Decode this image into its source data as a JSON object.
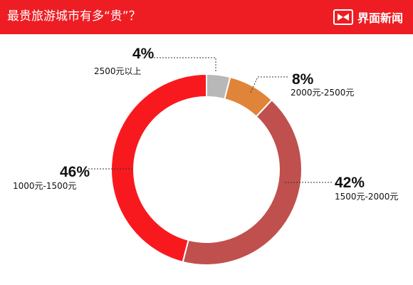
{
  "header": {
    "title": "最贵旅游城市有多“贵”？",
    "logo_text": "界面新闻",
    "logo_icon": "bowtie-logo-icon",
    "background_color": "#ee1d24"
  },
  "chart_data": {
    "type": "pie",
    "style": "donut",
    "title": "",
    "slices": [
      {
        "label": "2500元以上",
        "value": 4,
        "value_label": "4%",
        "color": "#b8b8b8"
      },
      {
        "label": "2000元-2500元",
        "value": 8,
        "value_label": "8%",
        "color": "#e0843a"
      },
      {
        "label": "1500元-2000元",
        "value": 42,
        "value_label": "42%",
        "color": "#c0504d"
      },
      {
        "label": "1000元-1500元",
        "value": 46,
        "value_label": "46%",
        "color": "#f8191f"
      }
    ],
    "legend": "none",
    "labels_with_dotted_leaders": true
  }
}
